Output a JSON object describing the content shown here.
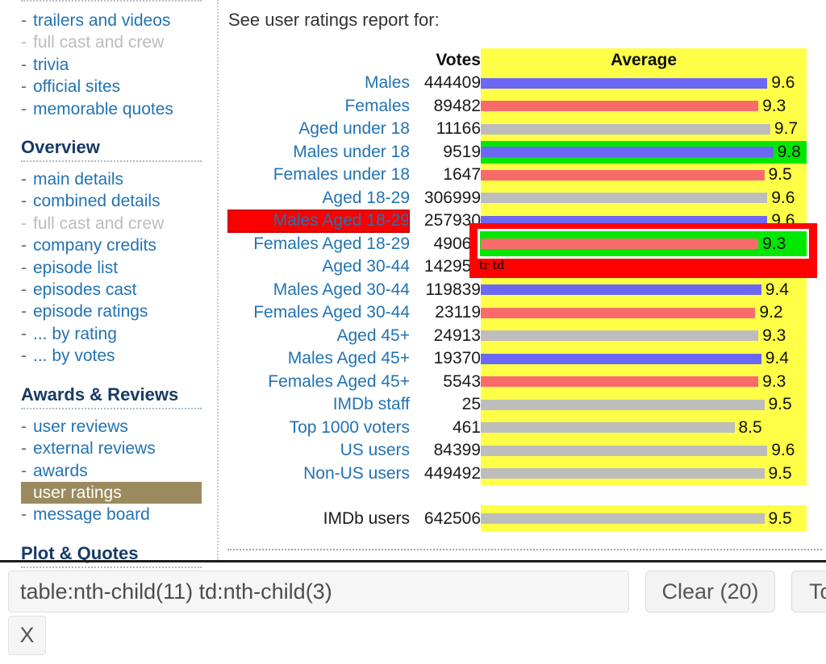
{
  "main": {
    "intro": "See user ratings report for:"
  },
  "sidebar": {
    "sections": [
      {
        "items": [
          {
            "label": "trailers and videos"
          },
          {
            "label": "full cast and crew",
            "state": "disabled"
          },
          {
            "label": "trivia"
          },
          {
            "label": "official sites"
          },
          {
            "label": "memorable quotes"
          }
        ]
      },
      {
        "heading": "Overview",
        "items": [
          {
            "label": "main details"
          },
          {
            "label": "combined details"
          },
          {
            "label": "full cast and crew",
            "state": "disabled"
          },
          {
            "label": "company credits"
          },
          {
            "label": "episode list"
          },
          {
            "label": "episodes cast"
          },
          {
            "label": "episode ratings"
          },
          {
            "label": "... by rating"
          },
          {
            "label": "... by votes"
          }
        ]
      },
      {
        "heading": "Awards & Reviews",
        "items": [
          {
            "label": "user reviews"
          },
          {
            "label": "external reviews"
          },
          {
            "label": "awards"
          },
          {
            "label": "user ratings",
            "state": "selected"
          },
          {
            "label": "message board"
          }
        ]
      },
      {
        "heading": "Plot & Quotes",
        "items": []
      }
    ]
  },
  "ratings": {
    "headers": {
      "votes": "Votes",
      "average": "Average"
    },
    "rows": [
      {
        "label": "Males",
        "votes": "444409",
        "average": 9.6,
        "bar_color": "male"
      },
      {
        "label": "Females",
        "votes": "89482",
        "average": 9.3,
        "bar_color": "female"
      },
      {
        "label": "Aged under 18",
        "votes": "11166",
        "average": 9.7,
        "bar_color": "all"
      },
      {
        "label": "Males under 18",
        "votes": "9519",
        "average": 9.8,
        "bar_color": "male",
        "cell_bg": "green"
      },
      {
        "label": "Females under 18",
        "votes": "1647",
        "average": 9.5,
        "bar_color": "female"
      },
      {
        "label": "Aged 18-29",
        "votes": "306999",
        "average": 9.6,
        "bar_color": "all"
      },
      {
        "label": "Males Aged 18-29",
        "votes": "257930",
        "average": 9.6,
        "bar_color": "male",
        "label_highlight": true
      },
      {
        "label": "Females Aged 18-29",
        "votes": "49069",
        "average": 9.3,
        "bar_color": "female",
        "cell_bg": "green"
      },
      {
        "label": "Aged 30-44",
        "votes": "142958",
        "average": null,
        "bar_color": "all"
      },
      {
        "label": "Males Aged 30-44",
        "votes": "119839",
        "average": 9.4,
        "bar_color": "male"
      },
      {
        "label": "Females Aged 30-44",
        "votes": "23119",
        "average": 9.2,
        "bar_color": "female"
      },
      {
        "label": "Aged 45+",
        "votes": "24913",
        "average": 9.3,
        "bar_color": "all"
      },
      {
        "label": "Males Aged 45+",
        "votes": "19370",
        "average": 9.4,
        "bar_color": "male"
      },
      {
        "label": "Females Aged 45+",
        "votes": "5543",
        "average": 9.3,
        "bar_color": "female"
      },
      {
        "label": "IMDb staff",
        "votes": "25",
        "average": 9.5,
        "bar_color": "all"
      },
      {
        "label": "Top 1000 voters",
        "votes": "461",
        "average": 8.5,
        "bar_color": "all"
      },
      {
        "label": "US users",
        "votes": "84399",
        "average": 9.6,
        "bar_color": "all"
      },
      {
        "label": "Non-US users",
        "votes": "449492",
        "average": 9.5,
        "bar_color": "all"
      }
    ],
    "totals": {
      "label": "IMDb users",
      "votes": "642506",
      "average": 9.5,
      "bar_color": "all",
      "link": false
    }
  },
  "overlay": {
    "tag_label": "tr td",
    "value": 9.3,
    "bar_color": "female"
  },
  "toolbar": {
    "selector_value": "table:nth-child(11) td:nth-child(3)",
    "clear_label": "Clear (20)",
    "toggle_label": "To",
    "close_label": "X"
  },
  "colors": {
    "male": "#6c67f5",
    "female": "#f96b6b",
    "all": "#bdbdbd",
    "column_yellow": "#ffff47",
    "row_highlight_green": "#00e800",
    "label_highlight_red": "#fb0000",
    "overlay_red": "#fe0202",
    "sidebar_selected_tan": "#9c8a5f",
    "link_blue": "#2273b3",
    "heading_navy": "#173a66"
  }
}
